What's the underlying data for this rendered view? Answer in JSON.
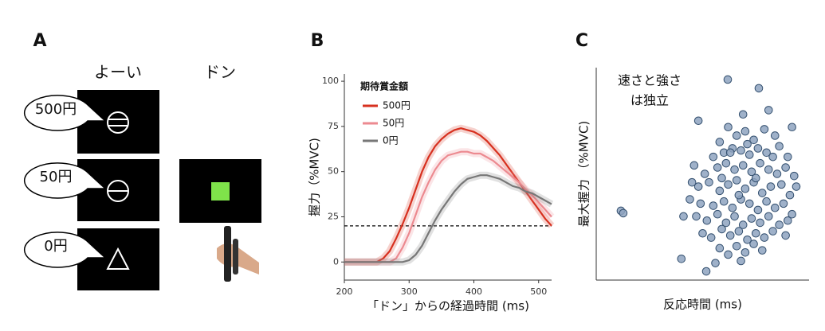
{
  "panel_a": {
    "label": "A",
    "headers": [
      "よーい",
      "ドン"
    ],
    "bubbles": [
      "500円",
      "50円",
      "0円"
    ]
  },
  "chart_data": [
    {
      "panel_label": "B",
      "type": "line",
      "x_label": "「ドン」からの経過時間 (ms)",
      "y_label": "握力（%MVC)",
      "legend_title": "期待賞金額",
      "legend": "upper left",
      "x": [
        200,
        210,
        220,
        230,
        240,
        250,
        260,
        270,
        280,
        290,
        300,
        310,
        320,
        330,
        340,
        350,
        360,
        370,
        380,
        390,
        400,
        410,
        420,
        430,
        440,
        450,
        460,
        470,
        480,
        490,
        500,
        510,
        520
      ],
      "series": [
        {
          "name": "500円",
          "color": "#d7301f",
          "values": [
            0,
            0,
            0,
            0,
            0,
            0,
            2,
            6,
            13,
            21,
            30,
            40,
            50,
            58,
            64,
            68,
            71,
            73,
            74,
            73,
            72,
            70,
            67,
            63,
            59,
            54,
            49,
            44,
            39,
            34,
            29,
            24,
            20
          ]
        },
        {
          "name": "50円",
          "color": "#ec8a90",
          "values": [
            0,
            0,
            0,
            0,
            0,
            0,
            0,
            0,
            2,
            8,
            16,
            26,
            36,
            44,
            51,
            56,
            59,
            60,
            61,
            61,
            60,
            60,
            58,
            56,
            53,
            50,
            47,
            44,
            40,
            37,
            33,
            29,
            25
          ]
        },
        {
          "name": "0円",
          "color": "#777777",
          "values": [
            0,
            0,
            0,
            0,
            0,
            0,
            0,
            0,
            0,
            0,
            1,
            4,
            9,
            16,
            23,
            29,
            34,
            39,
            43,
            46,
            47,
            48,
            48,
            47,
            46,
            44,
            42,
            41,
            39,
            38,
            36,
            34,
            32
          ]
        }
      ],
      "reference_line": 20,
      "xlim": [
        200,
        520
      ],
      "xticks": [
        200,
        300,
        400,
        500
      ],
      "ylim": [
        -10,
        104
      ],
      "yticks": [
        0,
        25,
        50,
        75,
        100
      ]
    },
    {
      "panel_label": "C",
      "type": "scatter",
      "x_label": "反応時間 (ms)",
      "y_label": "最大握力 （%MVC)",
      "annotation": [
        "速さと強さ",
        "は独立"
      ],
      "color": "#8ea3c0",
      "xlim": [
        0,
        100
      ],
      "ylim": [
        0,
        100
      ],
      "x": [
        62,
        58,
        66,
        70,
        74,
        79,
        84,
        92,
        55,
        60,
        64,
        68,
        72,
        76,
        80,
        86,
        90,
        46,
        51,
        57,
        61,
        65,
        69,
        73,
        77,
        81,
        85,
        89,
        93,
        48,
        53,
        58,
        62,
        66,
        70,
        74,
        78,
        82,
        87,
        91,
        44,
        49,
        55,
        60,
        64,
        68,
        72,
        76,
        80,
        84,
        88,
        92,
        47,
        52,
        57,
        61,
        65,
        69,
        73,
        77,
        81,
        86,
        90,
        50,
        54,
        59,
        63,
        67,
        71,
        75,
        79,
        83,
        89,
        58,
        62,
        66,
        70,
        74,
        78,
        56,
        68,
        63,
        71,
        67,
        59,
        75,
        83,
        45,
        41,
        94,
        11.6,
        12.7,
        61.8,
        76.4,
        51.7,
        48,
        69,
        81,
        40
      ],
      "values": [
        72,
        65,
        68,
        70,
        66,
        71,
        68,
        72,
        58,
        60,
        62,
        61,
        59,
        62,
        60,
        63,
        58,
        54,
        50,
        53,
        55,
        52,
        54,
        51,
        55,
        52,
        50,
        53,
        49,
        44,
        46,
        42,
        45,
        47,
        43,
        46,
        41,
        44,
        45,
        40,
        38,
        36,
        35,
        37,
        34,
        38,
        36,
        33,
        37,
        34,
        36,
        31,
        30,
        28,
        31,
        27,
        30,
        26,
        29,
        27,
        30,
        26,
        28,
        22,
        20,
        24,
        21,
        23,
        19,
        22,
        20,
        23,
        21,
        15,
        12,
        16,
        13,
        17,
        14,
        8,
        9,
        60,
        64,
        40,
        48,
        48,
        58,
        46,
        30,
        44,
        32.6,
        31.5,
        94.4,
        90.3,
        4.1,
        75,
        78,
        80,
        10
      ]
    }
  ]
}
